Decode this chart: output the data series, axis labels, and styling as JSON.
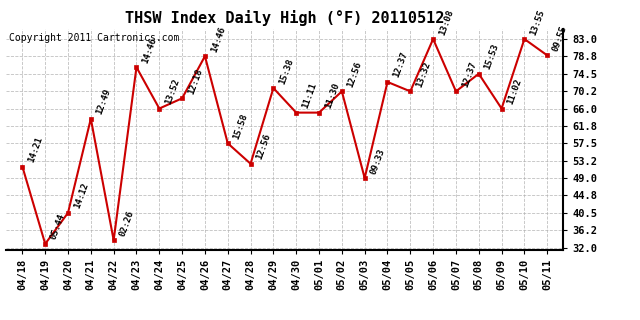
{
  "title": "THSW Index Daily High (°F) 20110512",
  "copyright": "Copyright 2011 Cartronics.com",
  "dates": [
    "04/18",
    "04/19",
    "04/20",
    "04/21",
    "04/22",
    "04/23",
    "04/24",
    "04/25",
    "04/26",
    "04/27",
    "04/28",
    "04/29",
    "04/30",
    "05/01",
    "05/02",
    "05/03",
    "05/04",
    "05/05",
    "05/06",
    "05/07",
    "05/08",
    "05/09",
    "05/10",
    "05/11"
  ],
  "values": [
    51.8,
    32.9,
    40.5,
    63.5,
    33.8,
    76.1,
    66.0,
    68.5,
    78.8,
    57.5,
    52.5,
    71.0,
    65.0,
    65.0,
    70.2,
    49.0,
    72.5,
    70.2,
    83.0,
    70.2,
    74.5,
    66.0,
    83.0,
    79.0
  ],
  "labels": [
    "14:21",
    "05:44",
    "14:12",
    "12:49",
    "02:26",
    "14:46",
    "13:52",
    "12:18",
    "14:46",
    "15:58",
    "12:56",
    "15:38",
    "11:11",
    "11:30",
    "12:56",
    "09:33",
    "12:37",
    "13:32",
    "13:08",
    "12:37",
    "15:53",
    "11:02",
    "13:55",
    "09:55"
  ],
  "ylim_min": 32.0,
  "ylim_max": 83.0,
  "yticks": [
    32.0,
    36.2,
    40.5,
    44.8,
    49.0,
    53.2,
    57.5,
    61.8,
    66.0,
    70.2,
    74.5,
    78.8,
    83.0
  ],
  "line_color": "#cc0000",
  "marker_color": "#cc0000",
  "bg_color": "#ffffff",
  "grid_color": "#b0b0b0",
  "title_fontsize": 11,
  "label_fontsize": 6.5,
  "copyright_fontsize": 7,
  "tick_fontsize": 7.5
}
